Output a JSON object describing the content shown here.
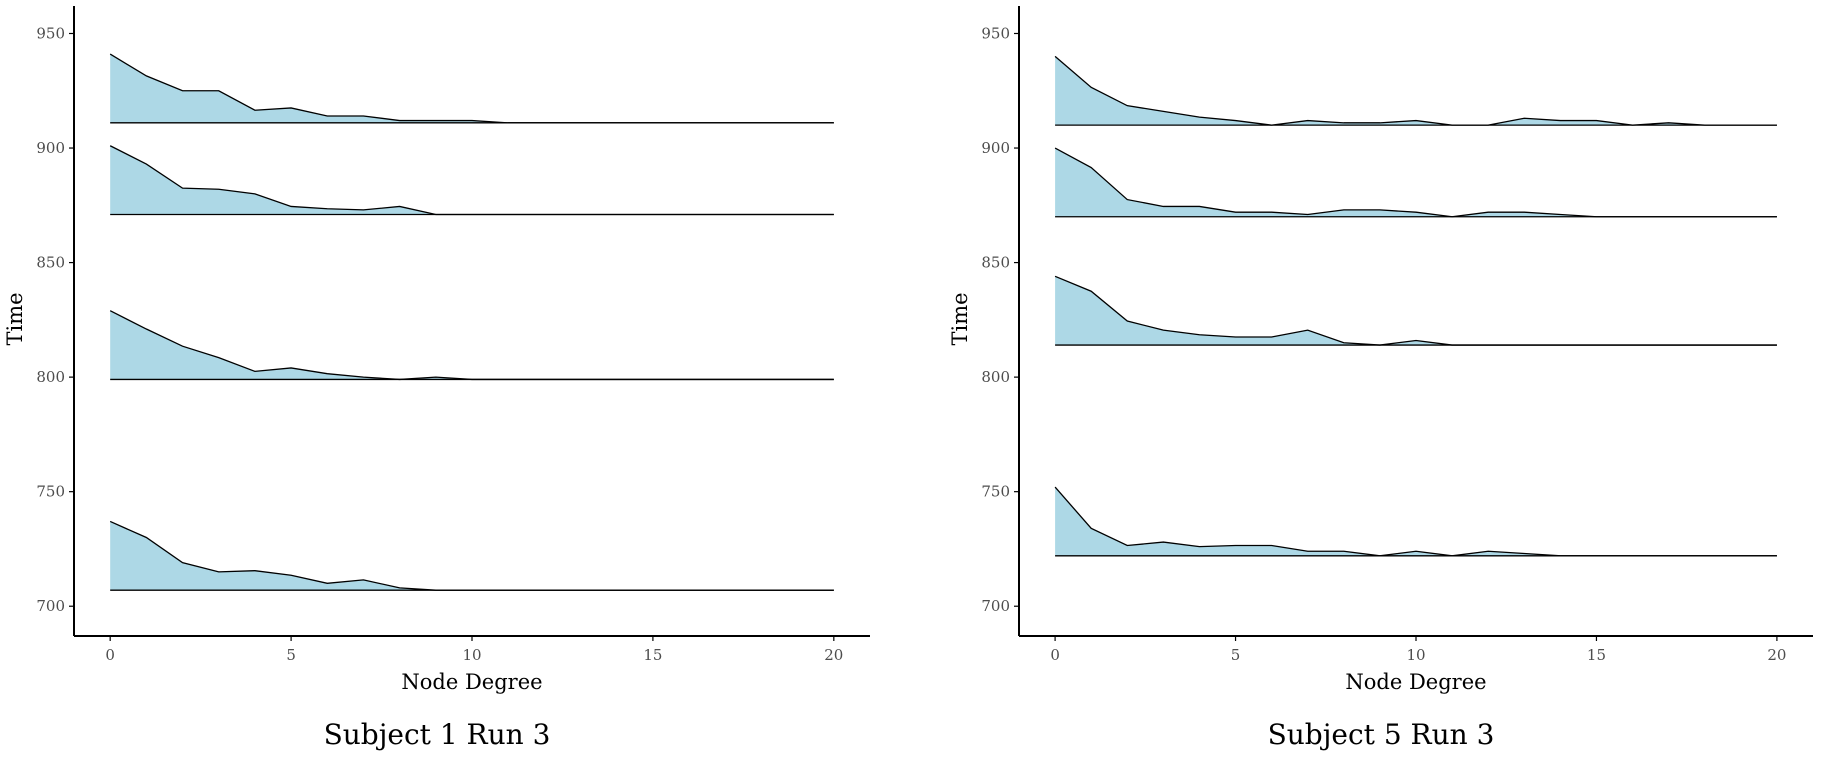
{
  "colors": {
    "fill": "#add8e6",
    "line": "#000000",
    "axis": "#000000",
    "tick_text": "#4d4d4d"
  },
  "chart_data": [
    {
      "type": "area",
      "caption": "Subject 1 Run 3",
      "xlabel": "Node Degree",
      "ylabel": "Time",
      "xlim": [
        -1,
        21
      ],
      "ylim": [
        687,
        962
      ],
      "xticks": [
        0,
        5,
        10,
        15,
        20
      ],
      "yticks": [
        700,
        750,
        800,
        850,
        900,
        950
      ],
      "grid": false,
      "series": [
        {
          "baseline": 707,
          "x": [
            0,
            1,
            2,
            3,
            4,
            5,
            6,
            7,
            8,
            9,
            10,
            11,
            12,
            13,
            14,
            15,
            16,
            17,
            18,
            19,
            20
          ],
          "values": [
            737,
            730,
            719,
            715,
            715.5,
            713.5,
            710,
            711.5,
            708,
            707,
            707,
            707,
            707,
            707,
            707,
            707,
            707,
            707,
            707,
            707,
            707
          ]
        },
        {
          "baseline": 799,
          "x": [
            0,
            1,
            2,
            3,
            4,
            5,
            6,
            7,
            8,
            9,
            10,
            11,
            12,
            13,
            14,
            15,
            16,
            17,
            18,
            19,
            20
          ],
          "values": [
            829,
            821,
            813.5,
            808.5,
            802.5,
            804,
            801.5,
            800,
            799,
            800,
            799,
            799,
            799,
            799,
            799,
            799,
            799,
            799,
            799,
            799,
            799
          ]
        },
        {
          "baseline": 871,
          "x": [
            0,
            1,
            2,
            3,
            4,
            5,
            6,
            7,
            8,
            9,
            10,
            11,
            12,
            13,
            14,
            15,
            16,
            17,
            18,
            19,
            20
          ],
          "values": [
            901,
            893,
            882.5,
            882,
            880,
            874.5,
            873.5,
            873,
            874.5,
            871,
            871,
            871,
            871,
            871,
            871,
            871,
            871,
            871,
            871,
            871,
            871
          ]
        },
        {
          "baseline": 911,
          "x": [
            0,
            1,
            2,
            3,
            4,
            5,
            6,
            7,
            8,
            9,
            10,
            11,
            12,
            13,
            14,
            15,
            16,
            17,
            18,
            19,
            20
          ],
          "values": [
            941,
            931.5,
            925,
            925,
            916.5,
            917.5,
            914,
            914,
            912,
            912,
            912,
            911,
            911,
            911,
            911,
            911,
            911,
            911,
            911,
            911,
            911
          ]
        }
      ]
    },
    {
      "type": "area",
      "caption": "Subject 5 Run 3",
      "xlabel": "Node Degree",
      "ylabel": "Time",
      "xlim": [
        -1,
        21
      ],
      "ylim": [
        687,
        962
      ],
      "xticks": [
        0,
        5,
        10,
        15,
        20
      ],
      "yticks": [
        700,
        750,
        800,
        850,
        900,
        950
      ],
      "grid": false,
      "series": [
        {
          "baseline": 722,
          "x": [
            0,
            1,
            2,
            3,
            4,
            5,
            6,
            7,
            8,
            9,
            10,
            11,
            12,
            13,
            14,
            15,
            16,
            17,
            18,
            19,
            20
          ],
          "values": [
            752,
            734,
            726.5,
            728,
            726,
            726.5,
            726.5,
            724,
            724,
            722,
            724,
            722,
            724,
            723,
            722,
            722,
            722,
            722,
            722,
            722,
            722
          ]
        },
        {
          "baseline": 814,
          "x": [
            0,
            1,
            2,
            3,
            4,
            5,
            6,
            7,
            8,
            9,
            10,
            11,
            12,
            13,
            14,
            15,
            16,
            17,
            18,
            19,
            20
          ],
          "values": [
            844,
            837.5,
            824.5,
            820.5,
            818.5,
            817.5,
            817.5,
            820.5,
            815,
            814,
            816,
            814,
            814,
            814,
            814,
            814,
            814,
            814,
            814,
            814,
            814
          ]
        },
        {
          "baseline": 870,
          "x": [
            0,
            1,
            2,
            3,
            4,
            5,
            6,
            7,
            8,
            9,
            10,
            11,
            12,
            13,
            14,
            15,
            16,
            17,
            18,
            19,
            20
          ],
          "values": [
            900,
            891.5,
            877.5,
            874.5,
            874.5,
            872,
            872,
            871,
            873,
            873,
            872,
            870,
            872,
            872,
            871,
            870,
            870,
            870,
            870,
            870,
            870
          ]
        },
        {
          "baseline": 910,
          "x": [
            0,
            1,
            2,
            3,
            4,
            5,
            6,
            7,
            8,
            9,
            10,
            11,
            12,
            13,
            14,
            15,
            16,
            17,
            18,
            19,
            20
          ],
          "values": [
            940,
            926.5,
            918.5,
            916,
            913.5,
            912,
            910,
            912,
            911,
            911,
            912,
            910,
            910,
            913,
            912,
            912,
            910,
            911,
            910,
            910,
            910
          ]
        }
      ]
    }
  ]
}
